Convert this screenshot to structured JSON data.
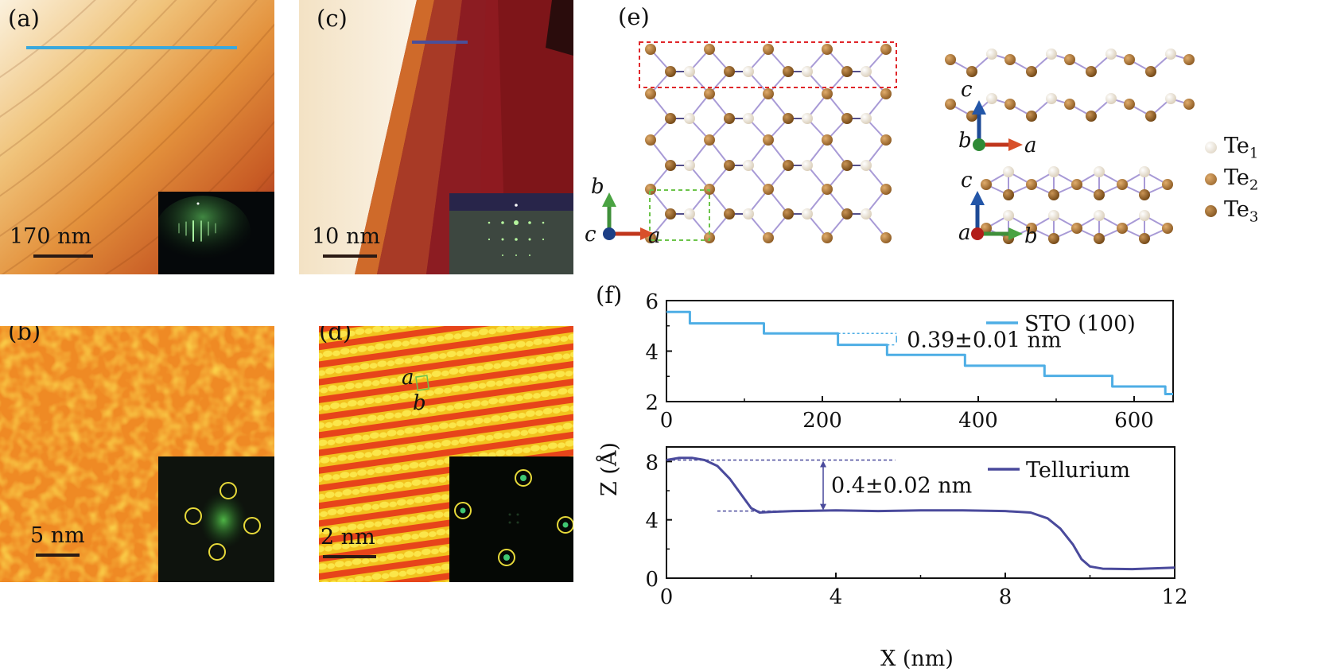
{
  "figure": {
    "panels": {
      "a": {
        "label": "(a)",
        "scale_bar": "170 nm",
        "description": "STO substrate terraces with RHEED inset",
        "line_color": "#3aa8dd"
      },
      "b": {
        "label": "(b)",
        "scale_bar": "5 nm",
        "description": "STO surface with FFT inset"
      },
      "c": {
        "label": "(c)",
        "scale_bar": "10 nm",
        "description": "Tellurium film steps with RHEED inset",
        "line_color": "#4a4f9a"
      },
      "d": {
        "label": "(d)",
        "scale_bar": "2 nm",
        "lattice_label_a": "a",
        "lattice_label_b": "b",
        "description": "Atomic resolution with FFT inset"
      },
      "e": {
        "label": "(e)",
        "axes_top_view": {
          "b": "b",
          "c": "c",
          "a": "a"
        },
        "axes_side_1": {
          "c": "c",
          "b": "b",
          "a": "a"
        },
        "axes_side_2": {
          "c": "c",
          "a": "a",
          "b": "b"
        },
        "legend": [
          {
            "base": "Te",
            "sub": "1",
            "color": "#efe6d6"
          },
          {
            "base": "Te",
            "sub": "2",
            "color": "#b57a3c"
          },
          {
            "base": "Te",
            "sub": "3",
            "color": "#9c6428"
          }
        ]
      },
      "f": {
        "label": "(f)"
      }
    }
  },
  "chart_data": [
    {
      "type": "line",
      "title": "",
      "xlabel": "",
      "ylabel": "Z (Å)",
      "xlim": [
        0,
        650
      ],
      "ylim": [
        2,
        6
      ],
      "xticks": [
        "0",
        "200",
        "400",
        "600"
      ],
      "yticks": [
        "2",
        "4",
        "6"
      ],
      "legend": {
        "label": "STO (100)",
        "placement": "top-right"
      },
      "series": [
        {
          "name": "STO (100)",
          "color": "#4eaee5",
          "steps": [
            {
              "x0": 0,
              "x1": 30,
              "y": 5.55
            },
            {
              "x0": 30,
              "x1": 125,
              "y": 5.1
            },
            {
              "x0": 125,
              "x1": 220,
              "y": 4.7
            },
            {
              "x0": 220,
              "x1": 283,
              "y": 4.25
            },
            {
              "x0": 283,
              "x1": 383,
              "y": 3.85
            },
            {
              "x0": 383,
              "x1": 485,
              "y": 3.42
            },
            {
              "x0": 485,
              "x1": 572,
              "y": 3.02
            },
            {
              "x0": 572,
              "x1": 640,
              "y": 2.6
            },
            {
              "x0": 640,
              "x1": 650,
              "y": 2.3
            }
          ]
        }
      ],
      "annotation": {
        "text": "0.39±0.01 nm",
        "from_y": 4.7,
        "to_y": 4.25,
        "x": 290
      }
    },
    {
      "type": "line",
      "title": "",
      "xlabel": "X (nm)",
      "ylabel": "Z (Å)",
      "xlim": [
        0,
        12
      ],
      "ylim": [
        0,
        9
      ],
      "xticks": [
        "0",
        "4",
        "8",
        "12"
      ],
      "yticks": [
        "0",
        "4",
        "8"
      ],
      "legend": {
        "label": "Tellurium",
        "placement": "top-right"
      },
      "series": [
        {
          "name": "Tellurium",
          "color": "#4a4a9c",
          "x": [
            0,
            0.3,
            0.6,
            0.9,
            1.2,
            1.5,
            1.8,
            2.0,
            2.2,
            2.5,
            3.0,
            4.0,
            5.0,
            6.0,
            7.0,
            8.0,
            8.6,
            9.0,
            9.3,
            9.6,
            9.8,
            10.0,
            10.3,
            11.0,
            12.0
          ],
          "y": [
            8.1,
            8.25,
            8.25,
            8.1,
            7.7,
            6.8,
            5.6,
            4.8,
            4.5,
            4.55,
            4.6,
            4.65,
            4.6,
            4.65,
            4.65,
            4.6,
            4.5,
            4.1,
            3.4,
            2.3,
            1.3,
            0.8,
            0.65,
            0.62,
            0.72
          ]
        }
      ],
      "annotation": {
        "text": "0.4±0.02 nm",
        "from_y": 8.1,
        "to_y": 4.6,
        "x": 3.7
      }
    }
  ]
}
